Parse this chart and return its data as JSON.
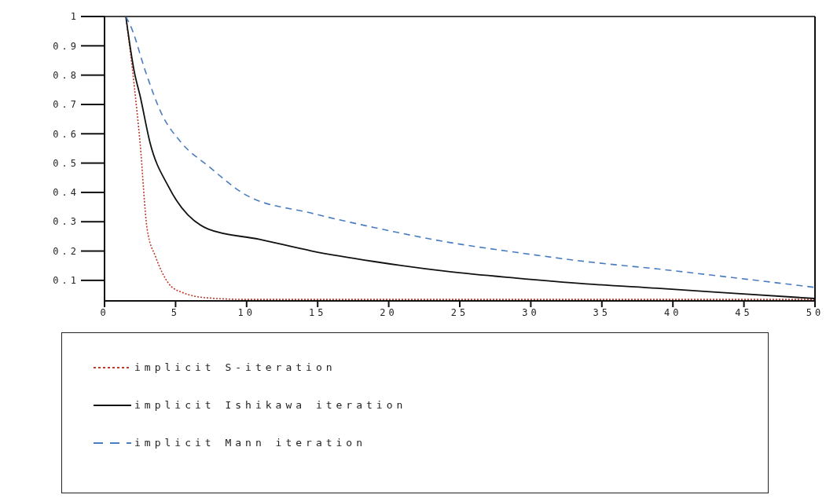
{
  "chart_data": {
    "type": "line",
    "xlim": [
      0,
      50
    ],
    "xticks": [
      0,
      5,
      10,
      15,
      20,
      25,
      30,
      35,
      40,
      45,
      50
    ],
    "ylim": [
      0.03,
      1
    ],
    "yticks": [
      0.1,
      0.2,
      0.3,
      0.4,
      0.5,
      0.6,
      0.7,
      0.8,
      0.9,
      1
    ],
    "grid": false,
    "legend": "bottom",
    "marker": "none",
    "series": [
      {
        "name": "implicit S-iteration",
        "color": "#c0392b",
        "line_style": "dotted",
        "x": [
          1.5,
          2.1,
          2.5,
          3.0,
          3.6,
          4.5,
          5.4,
          7.3,
          10,
          20,
          30,
          40,
          50
        ],
        "values": [
          1,
          0.76,
          0.57,
          0.275,
          0.18,
          0.09,
          0.06,
          0.04,
          0.035,
          0.035,
          0.035,
          0.035,
          0.035
        ]
      },
      {
        "name": "implicit Ishikawa iteration",
        "color": "#111111",
        "line_style": "solid",
        "x": [
          1.5,
          2.1,
          2.5,
          3.2,
          4.5,
          7.3,
          10.9,
          14.6,
          19,
          24.2,
          28.9,
          33.9,
          38.9,
          44.3,
          50
        ],
        "values": [
          1,
          0.81,
          0.73,
          0.57,
          0.42,
          0.275,
          0.24,
          0.2,
          0.164,
          0.13,
          0.108,
          0.088,
          0.073,
          0.056,
          0.038
        ]
      },
      {
        "name": "implicit Mann iteration",
        "color": "#4a7cc0",
        "line_style": "dashed",
        "x": [
          1.5,
          1.9,
          2.9,
          4.0,
          5.4,
          7.3,
          10,
          14.5,
          19,
          24.2,
          28.9,
          33.9,
          38.9,
          44.3,
          50
        ],
        "values": [
          1,
          0.96,
          0.81,
          0.67,
          0.57,
          0.49,
          0.39,
          0.33,
          0.28,
          0.23,
          0.196,
          0.164,
          0.139,
          0.109,
          0.076
        ]
      }
    ]
  }
}
